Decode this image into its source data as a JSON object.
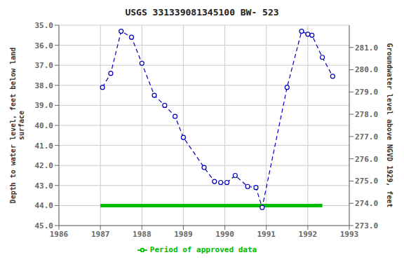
{
  "chart_data": {
    "type": "line",
    "title": "USGS 331339081345100 BW- 523",
    "y_label": "Depth to water level, feet below land\nsurface",
    "y2_label": "Groundwater level above NGVD 1929, feet",
    "x": [
      1987.05,
      1987.25,
      1987.5,
      1987.75,
      1988.0,
      1988.3,
      1988.55,
      1988.8,
      1989.0,
      1989.5,
      1989.75,
      1989.9,
      1990.05,
      1990.25,
      1990.55,
      1990.75,
      1990.9,
      1991.5,
      1991.85,
      1992.0,
      1992.1,
      1992.35,
      1992.6
    ],
    "values": [
      38.1,
      37.4,
      35.3,
      35.6,
      36.9,
      38.5,
      39.0,
      39.55,
      40.6,
      42.1,
      42.8,
      42.85,
      42.85,
      42.5,
      43.05,
      43.1,
      44.1,
      38.1,
      35.3,
      35.45,
      35.5,
      36.6,
      37.55
    ],
    "color": "#0000bb",
    "line_style": "dashed",
    "marker": "circle",
    "xlim": [
      1986,
      1993
    ],
    "xticks": [
      1986,
      1987,
      1988,
      1989,
      1990,
      1991,
      1992,
      1993
    ],
    "ylim": [
      45.0,
      35.0
    ],
    "yticks": [
      {
        "value": 35.0,
        "label": "35.0"
      },
      {
        "value": 36.0,
        "label": "36.0"
      },
      {
        "value": 37.0,
        "label": "37.0"
      },
      {
        "value": 38.0,
        "label": "38.0"
      },
      {
        "value": 39.0,
        "label": "39.0"
      },
      {
        "value": 40.0,
        "label": "40.0"
      },
      {
        "value": 41.0,
        "label": "41.0"
      },
      {
        "value": 42.0,
        "label": "42.0"
      },
      {
        "value": 43.0,
        "label": "43.0"
      },
      {
        "value": 44.0,
        "label": "44.0"
      },
      {
        "value": 45.0,
        "label": "45.0"
      }
    ],
    "y2lim": [
      273.0,
      282.0
    ],
    "y2ticks": [
      {
        "value": 273.0,
        "label": "273.0"
      },
      {
        "value": 274.0,
        "label": "274.0"
      },
      {
        "value": 275.0,
        "label": "275.0"
      },
      {
        "value": 276.0,
        "label": "276.0"
      },
      {
        "value": 277.0,
        "label": "277.0"
      },
      {
        "value": 278.0,
        "label": "278.0"
      },
      {
        "value": 279.0,
        "label": "279.0"
      },
      {
        "value": 280.0,
        "label": "280.0"
      },
      {
        "value": 281.0,
        "label": "281.0"
      }
    ],
    "grid": true,
    "legend": "bottom",
    "approved_period": {
      "name": "Period of approved data",
      "y": 44.0,
      "x_start": 1987.0,
      "x_end": 1992.35,
      "color": "#00bb00"
    }
  }
}
